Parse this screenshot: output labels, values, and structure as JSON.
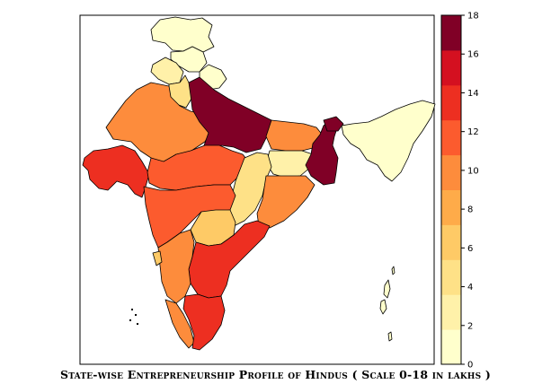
{
  "caption": "State-wise Entrepreneurship Profile of Hindus ( Scale 0-18 in lakhs )",
  "legend": {
    "ticks": [
      "0",
      "2",
      "4",
      "6",
      "8",
      "10",
      "12",
      "14",
      "16",
      "18"
    ],
    "colors": [
      "#FFFFCC",
      "#FFF1A9",
      "#FEE187",
      "#FECA66",
      "#FEAB49",
      "#FD8C3C",
      "#FC5B2E",
      "#ED2F21",
      "#D41020",
      "#800026"
    ]
  },
  "states": [
    {
      "name": "Jammu and Kashmir",
      "value": 1
    },
    {
      "name": "Himachal Pradesh",
      "value": 1
    },
    {
      "name": "Punjab",
      "value": 3
    },
    {
      "name": "Uttarakhand",
      "value": 1
    },
    {
      "name": "Haryana",
      "value": 4
    },
    {
      "name": "Rajasthan",
      "value": 9
    },
    {
      "name": "Uttar Pradesh",
      "value": 17
    },
    {
      "name": "Bihar",
      "value": 9
    },
    {
      "name": "Gujarat",
      "value": 13
    },
    {
      "name": "Madhya Pradesh",
      "value": 11
    },
    {
      "name": "Jharkhand",
      "value": 3
    },
    {
      "name": "West Bengal",
      "value": 17
    },
    {
      "name": "Chhattisgarh",
      "value": 5
    },
    {
      "name": "Odisha",
      "value": 9
    },
    {
      "name": "Maharashtra",
      "value": 11
    },
    {
      "name": "Telangana",
      "value": 7
    },
    {
      "name": "Andhra Pradesh",
      "value": 13
    },
    {
      "name": "Karnataka",
      "value": 9
    },
    {
      "name": "Goa",
      "value": 7
    },
    {
      "name": "Kerala",
      "value": 9
    },
    {
      "name": "Tamil Nadu",
      "value": 13
    },
    {
      "name": "Sikkim",
      "value": 17
    },
    {
      "name": "North-East States",
      "value": 1
    },
    {
      "name": "Andaman and Nicobar Islands",
      "value": 0
    }
  ]
}
